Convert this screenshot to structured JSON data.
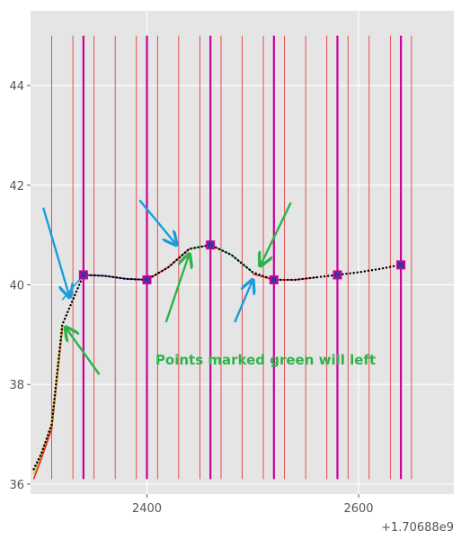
{
  "chart_data": {
    "type": "line",
    "title": "",
    "xlabel": "",
    "ylabel": "",
    "x_offset_label": "+1.70688e9",
    "xlim": [
      2290,
      2690
    ],
    "ylim": [
      35.8,
      45.5
    ],
    "xticks": [
      2400,
      2600
    ],
    "xtick_labels": [
      "2400",
      "2600"
    ],
    "yticks": [
      36,
      38,
      40,
      42,
      44
    ],
    "ytick_labels": [
      "36",
      "38",
      "40",
      "42",
      "44"
    ],
    "grid": true,
    "legend": "none",
    "vlines_thin": {
      "x": [
        2310,
        2330,
        2350,
        2370,
        2390,
        2410,
        2430,
        2450,
        2470,
        2490,
        2510,
        2530,
        2550,
        2570,
        2590,
        2610,
        2630,
        2650
      ],
      "y_range": [
        36.1,
        45.0
      ],
      "color": "#e8262c"
    },
    "vlines_thick": {
      "x": [
        2340,
        2400,
        2460,
        2520,
        2580,
        2640
      ],
      "y_range": [
        36.1,
        45.0
      ],
      "color": "#cc0099"
    },
    "series": [
      {
        "style": "dotted",
        "color": "#000000",
        "x": [
          2293,
          2300,
          2310,
          2320,
          2340,
          2360,
          2380,
          2400,
          2420,
          2440,
          2460,
          2480,
          2500,
          2520,
          2540,
          2560,
          2580,
          2600,
          2620,
          2640
        ],
        "y": [
          36.3,
          36.6,
          37.2,
          39.2,
          40.2,
          40.18,
          40.12,
          40.1,
          40.35,
          40.72,
          40.8,
          40.6,
          40.25,
          40.1,
          40.1,
          40.15,
          40.2,
          40.25,
          40.32,
          40.4
        ]
      },
      {
        "style": "solid",
        "color": "#e8262c",
        "x": [
          2293,
          2300,
          2310,
          2320
        ],
        "y": [
          36.1,
          36.5,
          37.1,
          39.1
        ]
      },
      {
        "style": "solid",
        "color": "#cccc00",
        "x": [
          2293,
          2300,
          2310,
          2320
        ],
        "y": [
          36.2,
          36.6,
          37.2,
          39.2
        ]
      },
      {
        "style": "solid",
        "color": "#1a9ed9",
        "x": [
          2320,
          2340
        ],
        "y": [
          39.7,
          40.2
        ]
      },
      {
        "style": "solid",
        "color": "#1a1a80",
        "x": [
          2340,
          2360,
          2380,
          2400
        ],
        "y": [
          40.2,
          40.18,
          40.12,
          40.1
        ]
      },
      {
        "style": "solid",
        "color": "#e8262c",
        "x": [
          2400,
          2420,
          2440
        ],
        "y": [
          40.1,
          40.35,
          40.72
        ]
      },
      {
        "style": "solid",
        "color": "#2db34a",
        "x": [
          2440,
          2460,
          2480,
          2500
        ],
        "y": [
          40.72,
          40.8,
          40.6,
          40.25
        ]
      },
      {
        "style": "solid",
        "color": "#e8262c",
        "x": [
          2500,
          2520,
          2540,
          2560
        ],
        "y": [
          40.22,
          40.1,
          40.1,
          40.15
        ]
      }
    ],
    "markers": {
      "color": "#2e3a9e",
      "edge_color": "#cc0099",
      "x": [
        2340,
        2400,
        2460,
        2520,
        2580,
        2640
      ],
      "y": [
        40.2,
        40.1,
        40.8,
        40.1,
        40.2,
        40.4
      ]
    },
    "arrows": [
      {
        "color": "#1a9ed9",
        "from": [
          2302,
          41.55
        ],
        "to": [
          2327,
          39.75
        ]
      },
      {
        "color": "#2db34a",
        "from": [
          2355,
          38.2
        ],
        "to": [
          2323,
          39.15
        ]
      },
      {
        "color": "#1a9ed9",
        "from": [
          2393,
          41.7
        ],
        "to": [
          2428,
          40.8
        ]
      },
      {
        "color": "#2db34a",
        "from": [
          2418,
          39.25
        ],
        "to": [
          2440,
          40.62
        ]
      },
      {
        "color": "#1a9ed9",
        "from": [
          2483,
          39.25
        ],
        "to": [
          2500,
          40.1
        ]
      },
      {
        "color": "#2db34a",
        "from": [
          2536,
          41.65
        ],
        "to": [
          2507,
          40.38
        ]
      }
    ],
    "annotations": [
      {
        "text": "Points marked green will left",
        "x": 2408,
        "y": 38.4,
        "color": "#2db34a"
      }
    ]
  }
}
